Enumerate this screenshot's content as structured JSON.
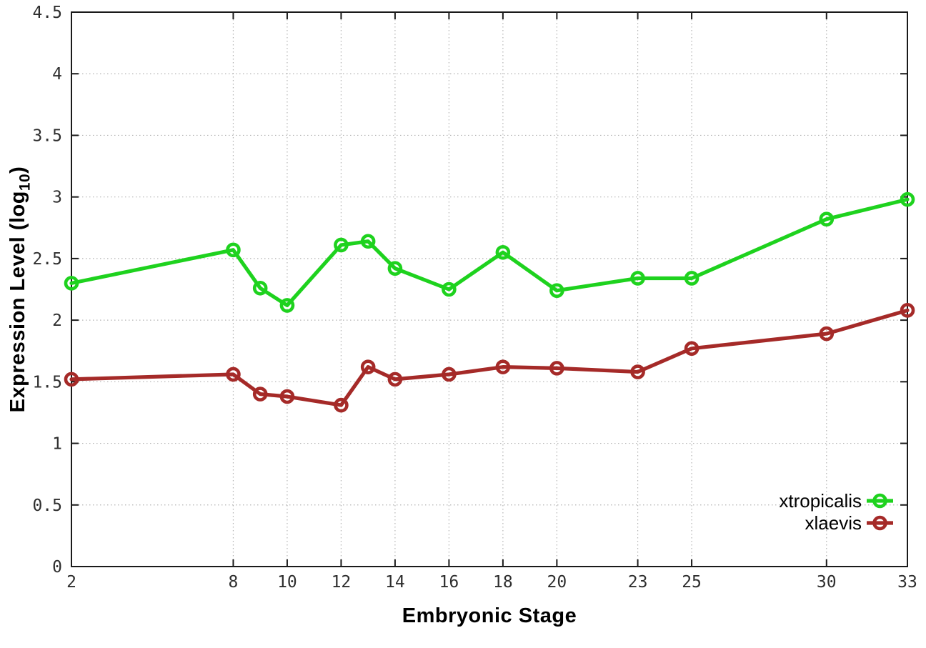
{
  "chart_data": {
    "type": "line",
    "title": "",
    "xlabel": "Embryonic Stage",
    "ylabel_prefix": "Expression Level (log",
    "ylabel_subscript": "10",
    "ylabel_suffix": ")",
    "xlim": [
      2,
      33
    ],
    "ylim": [
      0,
      4.5
    ],
    "x": [
      2,
      8,
      9,
      10,
      12,
      13,
      14,
      16,
      18,
      20,
      23,
      25,
      30,
      33
    ],
    "xtick_labels": [
      2,
      8,
      10,
      12,
      14,
      16,
      18,
      20,
      23,
      25,
      30,
      33
    ],
    "yticks": [
      0,
      0.5,
      1,
      1.5,
      2,
      2.5,
      3,
      3.5,
      4,
      4.5
    ],
    "grid": true,
    "marker": "open-circle",
    "legend_position": "bottom-right-inside",
    "series": [
      {
        "name": "xtropicalis",
        "color": "#1ed21e",
        "values": [
          2.3,
          2.57,
          2.26,
          2.12,
          2.61,
          2.64,
          2.42,
          2.25,
          2.55,
          2.24,
          2.34,
          2.34,
          2.82,
          2.98
        ]
      },
      {
        "name": "xlaevis",
        "color": "#a52a28",
        "values": [
          1.52,
          1.56,
          1.4,
          1.38,
          1.31,
          1.62,
          1.52,
          1.56,
          1.62,
          1.61,
          1.58,
          1.77,
          1.89,
          2.08
        ]
      }
    ],
    "colors": {
      "border": "#1a1a1a",
      "grid": "#b3b3b3",
      "tick_text": "#2e2e2e"
    }
  }
}
